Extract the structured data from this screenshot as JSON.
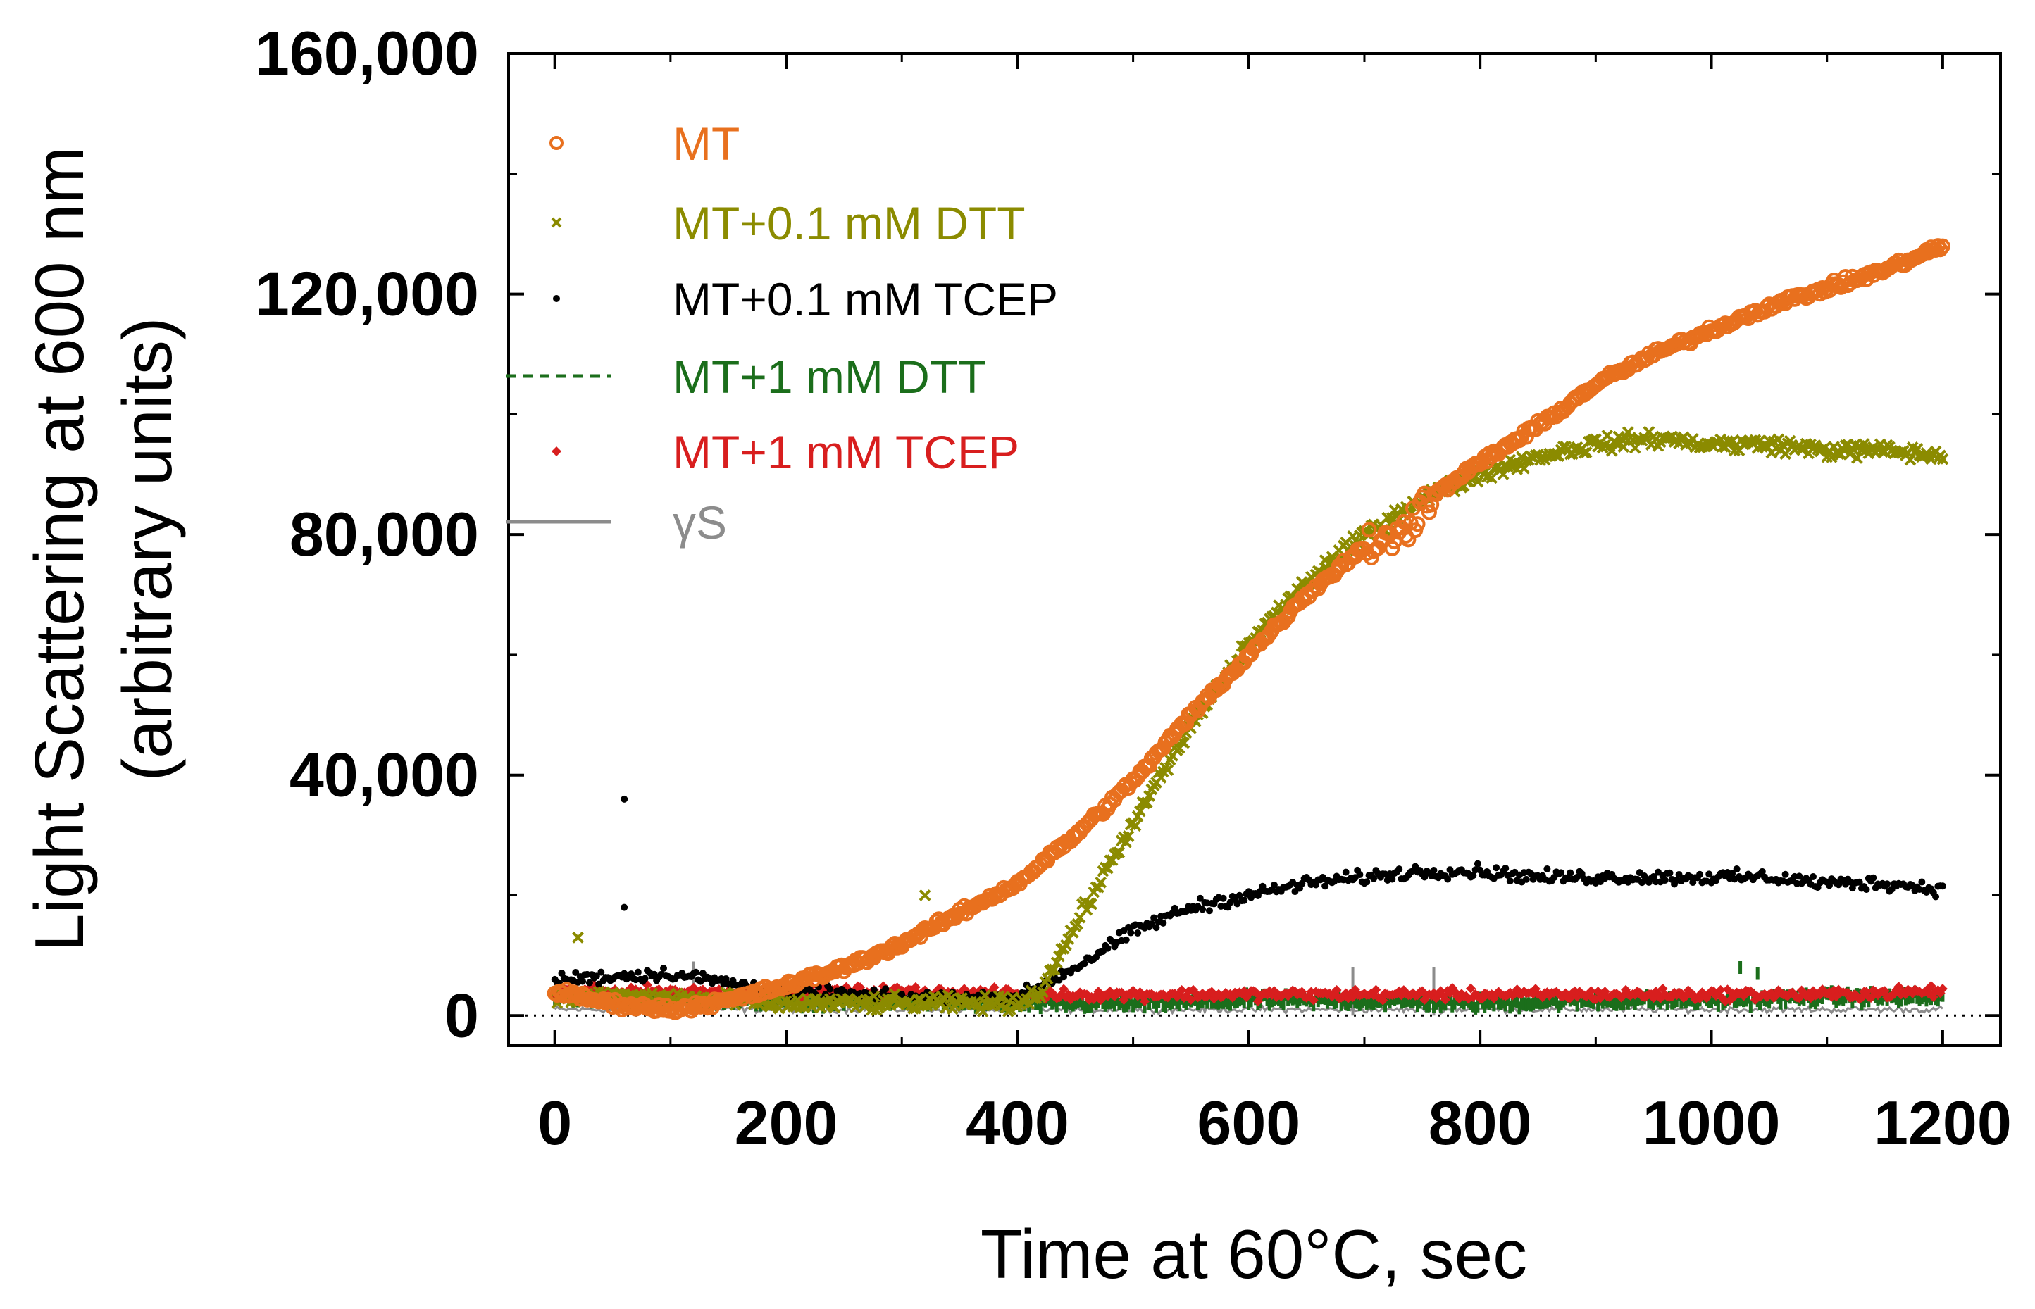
{
  "chart_data": {
    "type": "scatter",
    "title": "",
    "xlabel": "Time at 60°C, sec",
    "ylabel": [
      "Light Scattering at 600 nm",
      "(arbitrary units)"
    ],
    "xlim": [
      -40,
      1250
    ],
    "ylim": [
      -5000,
      160000
    ],
    "x_ticks": [
      0,
      200,
      400,
      600,
      800,
      1000,
      1200
    ],
    "x_tick_labels": [
      "0",
      "200",
      "400",
      "600",
      "800",
      "1000",
      "1200"
    ],
    "y_ticks": [
      0,
      40000,
      80000,
      120000,
      160000
    ],
    "y_tick_labels": [
      "0",
      "40,000",
      "80,000",
      "120,000",
      "160,000"
    ],
    "reference_line": {
      "y": 0,
      "style": "dotted"
    },
    "legend_position": "top-left",
    "series": [
      {
        "name": "MT",
        "marker": "circle",
        "color": "#E8701E",
        "x": [
          0,
          50,
          100,
          150,
          200,
          250,
          300,
          350,
          400,
          450,
          500,
          550,
          600,
          650,
          700,
          730,
          750,
          800,
          850,
          900,
          950,
          1000,
          1050,
          1100,
          1150,
          1200
        ],
        "y": [
          4000,
          2000,
          1000,
          2500,
          5000,
          8000,
          12000,
          17000,
          22000,
          30000,
          39000,
          50000,
          60000,
          70000,
          78000,
          80000,
          85000,
          92000,
          98000,
          105000,
          110000,
          114000,
          118000,
          121000,
          124000,
          128000
        ]
      },
      {
        "name": "MT+0.1 mM DTT",
        "marker": "x",
        "color": "#8B8B00",
        "x": [
          0,
          100,
          200,
          300,
          400,
          420,
          450,
          500,
          550,
          600,
          650,
          700,
          750,
          800,
          850,
          900,
          950,
          1000,
          1050,
          1100,
          1150,
          1200
        ],
        "y": [
          3000,
          3000,
          2000,
          2000,
          2000,
          4000,
          15000,
          32000,
          48000,
          62000,
          72000,
          80000,
          86000,
          90000,
          93000,
          95000,
          96000,
          95000,
          95000,
          94000,
          94000,
          93000
        ],
        "outliers": [
          [
            20,
            13000
          ],
          [
            320,
            20000
          ]
        ]
      },
      {
        "name": "MT+0.1 mM TCEP",
        "marker": "dot",
        "color": "#000000",
        "x": [
          0,
          100,
          200,
          300,
          400,
          450,
          500,
          550,
          600,
          650,
          700,
          750,
          800,
          850,
          900,
          950,
          1000,
          1050,
          1100,
          1150,
          1200
        ],
        "y": [
          6000,
          7000,
          4000,
          3000,
          3000,
          8000,
          14000,
          18000,
          20000,
          22000,
          23000,
          24000,
          24000,
          23000,
          23000,
          23000,
          23000,
          23000,
          22000,
          22000,
          21000
        ],
        "outliers": [
          [
            60,
            36000
          ],
          [
            60,
            18000
          ]
        ]
      },
      {
        "name": "MT+1 mM DTT",
        "marker": "dash",
        "color": "#1B6E1B",
        "x": [
          0,
          100,
          200,
          300,
          400,
          500,
          600,
          700,
          800,
          900,
          1000,
          1100,
          1200
        ],
        "y": [
          3000,
          2500,
          2500,
          2500,
          2000,
          2000,
          2500,
          2500,
          2000,
          2500,
          2500,
          3000,
          3000
        ],
        "outliers": [
          [
            1025,
            8000
          ],
          [
            1040,
            7000
          ]
        ]
      },
      {
        "name": "MT+1 mM TCEP",
        "marker": "diamond",
        "color": "#D81E1E",
        "x": [
          0,
          100,
          200,
          300,
          400,
          500,
          600,
          700,
          800,
          900,
          1000,
          1100,
          1200
        ],
        "y": [
          4000,
          4000,
          4000,
          4000,
          3500,
          3500,
          3500,
          3500,
          3500,
          3500,
          3500,
          3500,
          4000
        ]
      },
      {
        "name": "γS",
        "marker": "line",
        "color": "#8C8C8C",
        "x": [
          0,
          100,
          200,
          300,
          400,
          500,
          600,
          700,
          800,
          900,
          1000,
          1100,
          1200
        ],
        "y": [
          1000,
          1000,
          1000,
          1000,
          1000,
          1000,
          1000,
          1000,
          1000,
          1000,
          1000,
          1000,
          1000
        ],
        "spikes": [
          [
            120,
            9000
          ],
          [
            690,
            8000
          ],
          [
            760,
            8000
          ]
        ]
      }
    ]
  }
}
